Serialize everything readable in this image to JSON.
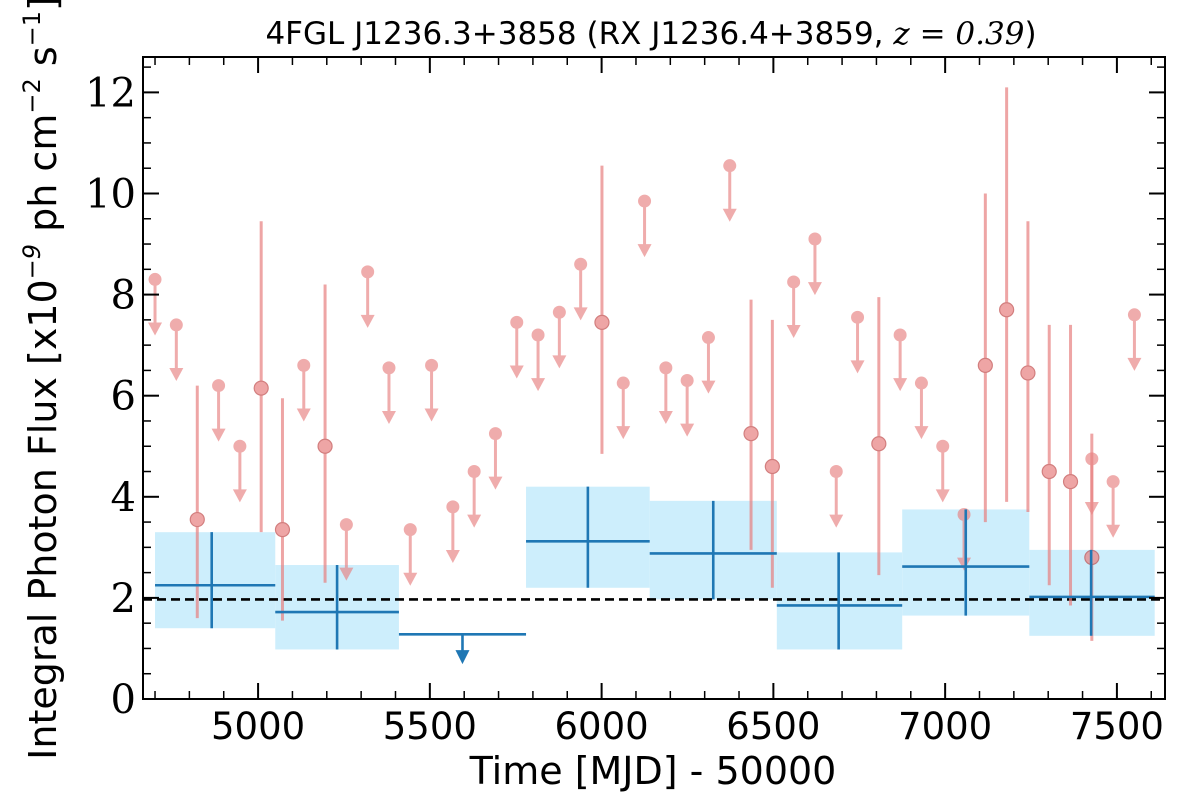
{
  "chart_data": {
    "type": "scatter",
    "title": {
      "prefix": "4FGL J1236.3+3858 (RX J1236.4+3859, ",
      "math": "z = 0.39",
      "suffix": ")"
    },
    "xlabel": "Time [MJD] - 50000",
    "ylabel": {
      "prefix": "Integral Photon Flux [x10",
      "exp1": "−9",
      "middle": " ph cm",
      "exp2": "−2",
      "middle2": " s",
      "exp3": "−1",
      "suffix": "]"
    },
    "xlim": [
      4665,
      7640
    ],
    "ylim": [
      0,
      12.7
    ],
    "xticks": [
      5000,
      5500,
      6000,
      6500,
      7000,
      7500
    ],
    "xtick_labels": [
      "5000",
      "5500",
      "6000",
      "6500",
      "7000",
      "7500"
    ],
    "yticks": [
      0,
      2,
      4,
      6,
      8,
      10,
      12
    ],
    "ytick_labels": [
      "0",
      "2",
      "4",
      "6",
      "8",
      "10",
      "12"
    ],
    "reference_line": {
      "y": 1.97,
      "style": "dashed",
      "color": "#000000"
    },
    "colors": {
      "short_bins": "#e88080",
      "long_bins": "#1f77b4",
      "long_bins_band": "#cdeefc"
    },
    "series": [
      {
        "bins": "short",
        "upper_limits": [
          {
            "x": 4700,
            "y": 8.3
          },
          {
            "x": 4762,
            "y": 7.4
          },
          {
            "x": 4885,
            "y": 6.2
          },
          {
            "x": 4947,
            "y": 5.0
          },
          {
            "x": 5133,
            "y": 6.6
          },
          {
            "x": 5257,
            "y": 3.45
          },
          {
            "x": 5319,
            "y": 8.45
          },
          {
            "x": 5381,
            "y": 6.55
          },
          {
            "x": 5443,
            "y": 3.35
          },
          {
            "x": 5505,
            "y": 6.6
          },
          {
            "x": 5567,
            "y": 3.8
          },
          {
            "x": 5629,
            "y": 4.5
          },
          {
            "x": 5691,
            "y": 5.25
          },
          {
            "x": 5753,
            "y": 7.45
          },
          {
            "x": 5815,
            "y": 7.2
          },
          {
            "x": 5877,
            "y": 7.65
          },
          {
            "x": 5939,
            "y": 8.6
          },
          {
            "x": 6063,
            "y": 6.25
          },
          {
            "x": 6125,
            "y": 9.85
          },
          {
            "x": 6187,
            "y": 6.55
          },
          {
            "x": 6249,
            "y": 6.3
          },
          {
            "x": 6311,
            "y": 7.15
          },
          {
            "x": 6373,
            "y": 10.55
          },
          {
            "x": 6559,
            "y": 8.25
          },
          {
            "x": 6621,
            "y": 9.1
          },
          {
            "x": 6683,
            "y": 4.5
          },
          {
            "x": 6745,
            "y": 7.55
          },
          {
            "x": 6869,
            "y": 7.2
          },
          {
            "x": 6931,
            "y": 6.25
          },
          {
            "x": 6993,
            "y": 5.0
          },
          {
            "x": 7055,
            "y": 3.65
          },
          {
            "x": 7427,
            "y": 4.75
          },
          {
            "x": 7489,
            "y": 4.3
          },
          {
            "x": 7551,
            "y": 7.6
          }
        ],
        "detections": [
          {
            "x": 4823,
            "y": 3.55,
            "ylow": 1.6,
            "yhigh": 6.2
          },
          {
            "x": 5009,
            "y": 6.15,
            "ylow": 3.3,
            "yhigh": 9.45
          },
          {
            "x": 5071,
            "y": 3.35,
            "ylow": 1.55,
            "yhigh": 5.95
          },
          {
            "x": 5195,
            "y": 5.0,
            "ylow": 2.3,
            "yhigh": 8.2
          },
          {
            "x": 6001,
            "y": 7.45,
            "ylow": 4.85,
            "yhigh": 10.55
          },
          {
            "x": 6435,
            "y": 5.25,
            "ylow": 2.95,
            "yhigh": 7.9
          },
          {
            "x": 6497,
            "y": 4.6,
            "ylow": 2.2,
            "yhigh": 7.5
          },
          {
            "x": 6807,
            "y": 5.05,
            "ylow": 2.45,
            "yhigh": 7.95
          },
          {
            "x": 7117,
            "y": 6.6,
            "ylow": 3.5,
            "yhigh": 10.0
          },
          {
            "x": 7179,
            "y": 7.7,
            "ylow": 3.9,
            "yhigh": 12.1
          },
          {
            "x": 7241,
            "y": 6.45,
            "ylow": 3.7,
            "yhigh": 9.45
          },
          {
            "x": 7303,
            "y": 4.5,
            "ylow": 2.25,
            "yhigh": 7.4
          },
          {
            "x": 7365,
            "y": 4.3,
            "ylow": 1.85,
            "yhigh": 7.4
          },
          {
            "x": 7427,
            "y": 2.8,
            "ylow": 1.15,
            "yhigh": 5.25
          }
        ]
      },
      {
        "bins": "long",
        "detections": [
          {
            "x": 4865,
            "xlow": 4700,
            "xhigh": 5050,
            "y": 2.25,
            "ylow": 1.4,
            "yhigh": 3.3
          },
          {
            "x": 5230,
            "xlow": 5050,
            "xhigh": 5410,
            "y": 1.72,
            "ylow": 0.98,
            "yhigh": 2.65
          },
          {
            "x": 5960,
            "xlow": 5780,
            "xhigh": 6140,
            "y": 3.12,
            "ylow": 2.2,
            "yhigh": 4.2
          },
          {
            "x": 6325,
            "xlow": 6140,
            "xhigh": 6510,
            "y": 2.88,
            "ylow": 1.97,
            "yhigh": 3.92
          },
          {
            "x": 6690,
            "xlow": 6510,
            "xhigh": 6875,
            "y": 1.85,
            "ylow": 0.98,
            "yhigh": 2.9
          },
          {
            "x": 7060,
            "xlow": 6875,
            "xhigh": 7245,
            "y": 2.62,
            "ylow": 1.65,
            "yhigh": 3.75
          },
          {
            "x": 7425,
            "xlow": 7245,
            "xhigh": 7610,
            "y": 2.02,
            "ylow": 1.25,
            "yhigh": 2.95
          }
        ],
        "upper_limits": [
          {
            "x": 5595,
            "xlow": 5410,
            "xhigh": 5780,
            "y": 1.28
          }
        ]
      }
    ]
  }
}
